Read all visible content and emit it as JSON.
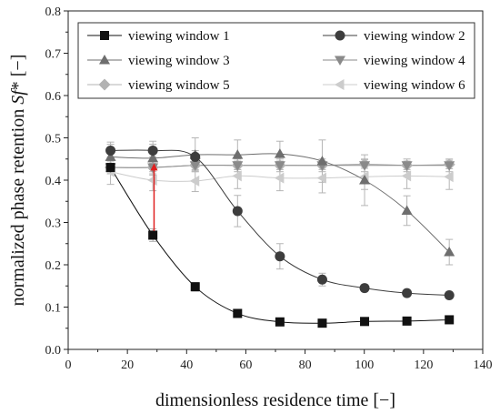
{
  "chart_data": {
    "type": "line",
    "xlabel": "dimensionless residence time [−]",
    "ylabel_prefix": "normalized phase retention ",
    "ylabel_symbol": "Sf",
    "ylabel_suffix": "* [−]",
    "xlim": [
      0,
      140
    ],
    "ylim": [
      0.0,
      0.8
    ],
    "xticks": [
      "0",
      "20",
      "40",
      "60",
      "80",
      "100",
      "120",
      "140"
    ],
    "yticks": [
      "0.0",
      "0.1",
      "0.2",
      "0.3",
      "0.4",
      "0.5",
      "0.6",
      "0.7",
      "0.8"
    ],
    "grid": false,
    "legend_position": "top",
    "x": [
      14.3,
      28.6,
      42.9,
      57.2,
      71.5,
      85.8,
      100.1,
      114.4,
      128.7
    ],
    "series": [
      {
        "name": "viewing window 1",
        "marker": "square",
        "color": "#111111",
        "values": [
          0.43,
          0.27,
          0.148,
          0.085,
          0.065,
          0.062,
          0.066,
          0.067,
          0.07
        ],
        "errors": [
          0.01,
          0.015,
          0.01,
          0.008,
          0.004,
          0.004,
          0.004,
          0.004,
          0.004
        ]
      },
      {
        "name": "viewing window 2",
        "marker": "circle",
        "color": "#3d3d3d",
        "values": [
          0.47,
          0.47,
          0.455,
          0.327,
          0.22,
          0.165,
          0.145,
          0.133,
          0.128
        ],
        "errors": [
          0.015,
          0.015,
          0.015,
          0.037,
          0.03,
          0.015,
          0.008,
          0.008,
          0.008
        ]
      },
      {
        "name": "viewing window 3",
        "marker": "triangle-up",
        "color": "#6e6e6e",
        "values": [
          0.455,
          0.452,
          0.46,
          0.46,
          0.462,
          0.445,
          0.4,
          0.328,
          0.23
        ],
        "errors": [
          0.035,
          0.04,
          0.04,
          0.035,
          0.03,
          0.05,
          0.06,
          0.035,
          0.03
        ]
      },
      {
        "name": "viewing window 4",
        "marker": "triangle-down",
        "color": "#8a8a8a",
        "values": [
          0.43,
          0.43,
          0.435,
          0.435,
          0.435,
          0.435,
          0.435,
          0.435,
          0.435
        ],
        "errors": [
          0.015,
          0.015,
          0.015,
          0.015,
          0.015,
          0.015,
          0.015,
          0.015,
          0.015
        ]
      },
      {
        "name": "viewing window 5",
        "marker": "diamond",
        "color": "#b3b3b3",
        "values": [
          0.43,
          0.43,
          0.435,
          0.435,
          0.435,
          0.435,
          0.438,
          0.435,
          0.437
        ],
        "errors": [
          0.01,
          0.01,
          0.01,
          0.01,
          0.01,
          0.01,
          0.01,
          0.01,
          0.01
        ]
      },
      {
        "name": "viewing window 6",
        "marker": "triangle-left",
        "color": "#cccccc",
        "values": [
          0.42,
          0.4,
          0.398,
          0.41,
          0.405,
          0.405,
          0.408,
          0.41,
          0.408
        ],
        "errors": [
          0.03,
          0.025,
          0.025,
          0.03,
          0.03,
          0.035,
          0.03,
          0.03,
          0.03
        ]
      }
    ],
    "annotation": {
      "type": "arrow",
      "color": "#e02020",
      "x": 29,
      "y_from": 0.28,
      "y_to": 0.44
    }
  }
}
